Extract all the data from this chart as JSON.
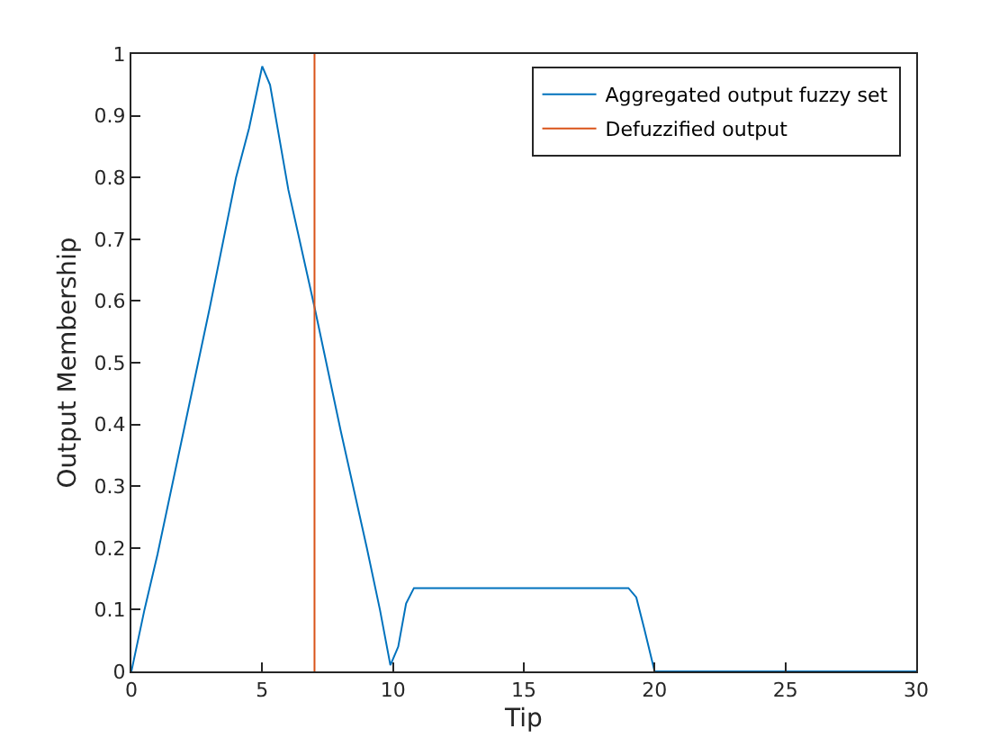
{
  "chart_data": {
    "type": "line",
    "xlabel": "Tip",
    "ylabel": "Output Membership",
    "xlim": [
      0,
      30
    ],
    "ylim": [
      0,
      1
    ],
    "xticks": [
      0,
      5,
      10,
      15,
      20,
      25,
      30
    ],
    "yticks": [
      0,
      0.1,
      0.2,
      0.3,
      0.4,
      0.5,
      0.6,
      0.7,
      0.8,
      0.9,
      1
    ],
    "legend": "top right",
    "series": [
      {
        "name": "Aggregated output fuzzy set",
        "color": "#0072bd",
        "x": [
          0,
          0.5,
          1,
          2,
          3,
          4,
          4.5,
          5,
          5.3,
          6,
          7,
          8,
          9,
          9.5,
          9.9,
          10.2,
          10.5,
          10.8,
          11,
          19,
          19.3,
          19.6,
          20,
          30
        ],
        "values": [
          0,
          0.1,
          0.19,
          0.39,
          0.59,
          0.8,
          0.88,
          0.98,
          0.95,
          0.78,
          0.59,
          0.39,
          0.2,
          0.1,
          0.01,
          0.04,
          0.11,
          0.135,
          0.135,
          0.135,
          0.12,
          0.07,
          0,
          0
        ]
      },
      {
        "name": "Defuzzified output",
        "color": "#d95319",
        "x": [
          7,
          7
        ],
        "values": [
          0,
          1
        ]
      }
    ]
  }
}
